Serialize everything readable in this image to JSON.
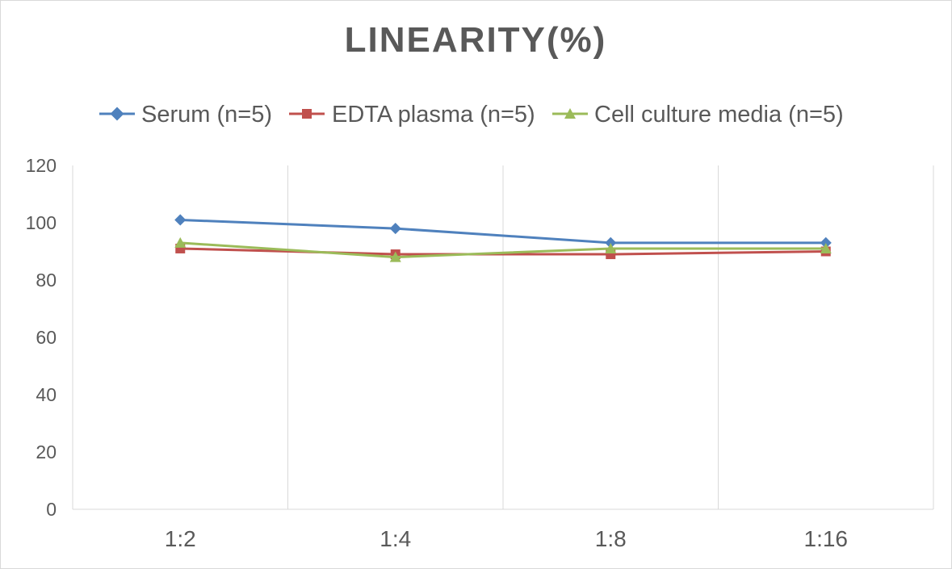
{
  "chart_data": {
    "type": "line",
    "title": "LINEARITY(%)",
    "xlabel": "",
    "ylabel": "",
    "categories": [
      "1:2",
      "1:4",
      "1:8",
      "1:16"
    ],
    "ylim": [
      0,
      120
    ],
    "yticks": [
      0,
      20,
      40,
      60,
      80,
      100,
      120
    ],
    "grid": "vertical",
    "legend_position": "top",
    "series": [
      {
        "name": "Serum (n=5)",
        "values": [
          101,
          98,
          93,
          93
        ],
        "color": "#4f81bd",
        "marker": "diamond"
      },
      {
        "name": "EDTA plasma (n=5)",
        "values": [
          91,
          89,
          89,
          90
        ],
        "color": "#c0504d",
        "marker": "square"
      },
      {
        "name": "Cell culture media (n=5)",
        "values": [
          93,
          88,
          91,
          91
        ],
        "color": "#9bbb59",
        "marker": "triangle"
      }
    ]
  }
}
